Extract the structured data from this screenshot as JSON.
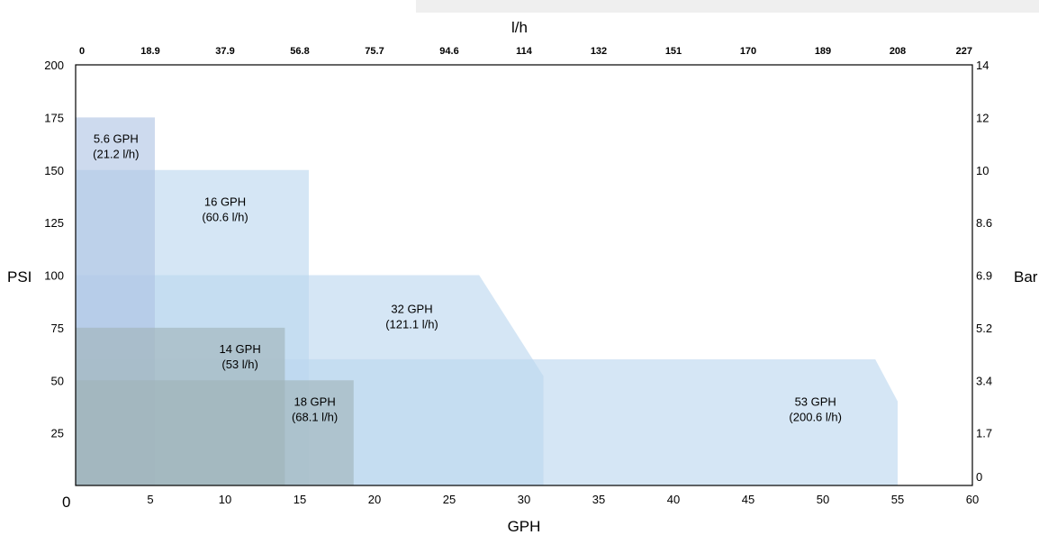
{
  "chart_data": {
    "type": "area",
    "xlabel_bottom": "GPH",
    "xlabel_top": "l/h",
    "ylabel_left": "PSI",
    "ylabel_right": "Bar",
    "xlim": [
      0,
      60
    ],
    "ylim": [
      0,
      200
    ],
    "origin_label": "0",
    "x_ticks_bottom": [
      "5",
      "10",
      "15",
      "20",
      "25",
      "30",
      "35",
      "40",
      "45",
      "50",
      "55",
      "60"
    ],
    "x_ticks_top": [
      "0",
      "18.9",
      "37.9",
      "56.8",
      "75.7",
      "94.6",
      "114",
      "132",
      "151",
      "170",
      "189",
      "208",
      "227"
    ],
    "y_ticks_left": [
      "200",
      "175",
      "150",
      "125",
      "100",
      "75",
      "50",
      "25"
    ],
    "y_ticks_right": [
      "14",
      "12",
      "10",
      "8.6",
      "6.9",
      "5.2",
      "3.4",
      "1.7",
      "0"
    ],
    "series": [
      {
        "name": "53 GPH",
        "label_gph": "53 GPH",
        "label_lh": "(200.6 l/h)",
        "color": "#bcd6ef",
        "points": [
          [
            0,
            0
          ],
          [
            0,
            60
          ],
          [
            53.5,
            60
          ],
          [
            55,
            40
          ],
          [
            55,
            0
          ]
        ],
        "label_at": [
          49.5,
          38
        ]
      },
      {
        "name": "32 GPH",
        "label_gph": "32 GPH",
        "label_lh": "(121.1 l/h)",
        "color": "#bcd6ef",
        "points": [
          [
            0,
            0
          ],
          [
            0,
            100
          ],
          [
            27,
            100
          ],
          [
            31.3,
            52
          ],
          [
            31.3,
            0
          ]
        ],
        "label_at": [
          22.5,
          82
        ]
      },
      {
        "name": "16 GPH",
        "label_gph": "16 GPH",
        "label_lh": "(60.6 l/h)",
        "color": "#bcd6ef",
        "points": [
          [
            0,
            0
          ],
          [
            0,
            150
          ],
          [
            15.6,
            150
          ],
          [
            15.6,
            0
          ]
        ],
        "label_at": [
          10,
          133
        ]
      },
      {
        "name": "5.6 GPH",
        "label_gph": "5.6 GPH",
        "label_lh": "(21.2 l/h)",
        "color": "#aec4e3",
        "points": [
          [
            0,
            0
          ],
          [
            0,
            175
          ],
          [
            5.3,
            175
          ],
          [
            5.3,
            0
          ]
        ],
        "label_at": [
          2.7,
          163
        ]
      },
      {
        "name": "18 GPH",
        "label_gph": "18 GPH",
        "label_lh": "(68.1 l/h)",
        "color": "#9fb3b8",
        "points": [
          [
            0,
            0
          ],
          [
            0,
            50
          ],
          [
            18.6,
            50
          ],
          [
            18.6,
            0
          ]
        ],
        "label_at": [
          16,
          38
        ]
      },
      {
        "name": "14 GPH",
        "label_gph": "14 GPH",
        "label_lh": "(53 l/h)",
        "color": "#9fb3b8",
        "points": [
          [
            0,
            0
          ],
          [
            0,
            75
          ],
          [
            14,
            75
          ],
          [
            14,
            0
          ]
        ],
        "label_at": [
          11,
          63
        ]
      }
    ]
  }
}
